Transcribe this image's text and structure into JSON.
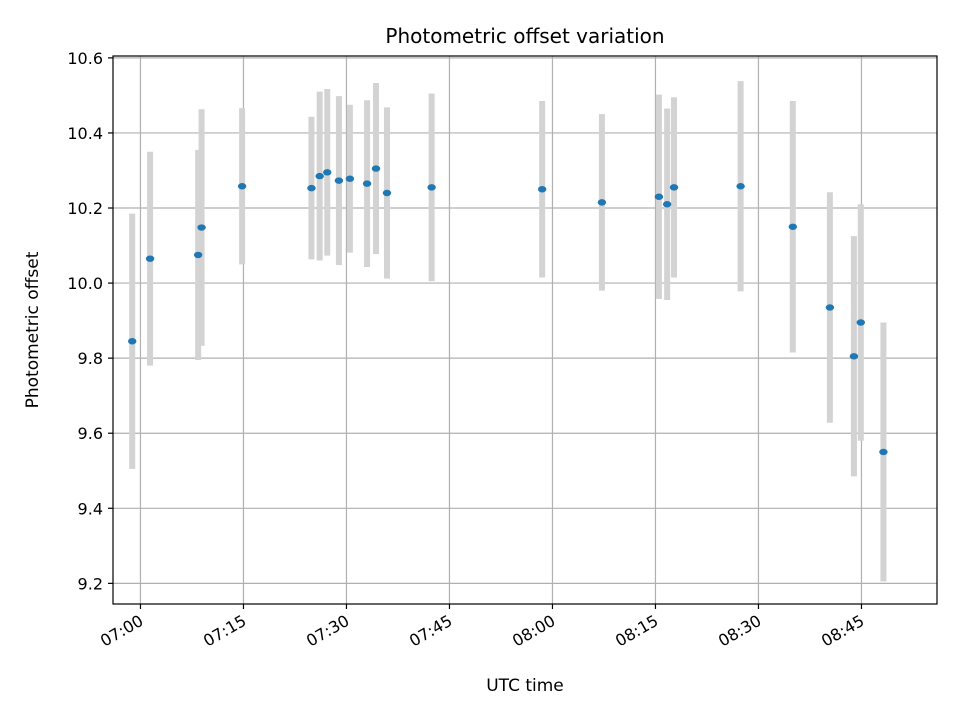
{
  "chart_data": {
    "type": "scatter",
    "title": "Photometric offset variation",
    "xlabel": "UTC time",
    "ylabel": "Photometric offset",
    "xlim": [
      "06:56",
      "08:56"
    ],
    "ylim": [
      9.145,
      10.605
    ],
    "x_ticks": [
      "07:00",
      "07:15",
      "07:30",
      "07:45",
      "08:00",
      "08:15",
      "08:30",
      "08:45"
    ],
    "y_ticks": [
      9.2,
      9.4,
      9.6,
      9.8,
      10.0,
      10.2,
      10.4,
      10.6
    ],
    "y_tick_labels": [
      "9.2",
      "9.4",
      "9.6",
      "9.8",
      "10.0",
      "10.2",
      "10.4",
      "10.6"
    ],
    "grid": true,
    "point_color": "#1f77b4",
    "errorbar_color": "#d3d3d3",
    "points": [
      {
        "x": "06:58:48",
        "y": 9.845,
        "err": 0.34
      },
      {
        "x": "07:01:24",
        "y": 10.065,
        "err": 0.285
      },
      {
        "x": "07:08:24",
        "y": 10.075,
        "err": 0.28
      },
      {
        "x": "07:08:54",
        "y": 10.148,
        "err": 0.315
      },
      {
        "x": "07:14:48",
        "y": 10.258,
        "err": 0.208
      },
      {
        "x": "07:24:54",
        "y": 10.253,
        "err": 0.19
      },
      {
        "x": "07:26:06",
        "y": 10.285,
        "err": 0.225
      },
      {
        "x": "07:27:12",
        "y": 10.295,
        "err": 0.222
      },
      {
        "x": "07:28:54",
        "y": 10.273,
        "err": 0.225
      },
      {
        "x": "07:30:30",
        "y": 10.278,
        "err": 0.197
      },
      {
        "x": "07:33:00",
        "y": 10.265,
        "err": 0.222
      },
      {
        "x": "07:34:18",
        "y": 10.305,
        "err": 0.228
      },
      {
        "x": "07:35:54",
        "y": 10.24,
        "err": 0.228
      },
      {
        "x": "07:42:24",
        "y": 10.255,
        "err": 0.25
      },
      {
        "x": "07:58:30",
        "y": 10.25,
        "err": 0.235
      },
      {
        "x": "08:07:12",
        "y": 10.215,
        "err": 0.235
      },
      {
        "x": "08:15:30",
        "y": 10.23,
        "err": 0.272
      },
      {
        "x": "08:16:42",
        "y": 10.21,
        "err": 0.255
      },
      {
        "x": "08:17:42",
        "y": 10.255,
        "err": 0.24
      },
      {
        "x": "08:27:24",
        "y": 10.258,
        "err": 0.28
      },
      {
        "x": "08:35:00",
        "y": 10.15,
        "err": 0.335
      },
      {
        "x": "08:40:24",
        "y": 9.935,
        "err": 0.307
      },
      {
        "x": "08:43:54",
        "y": 9.805,
        "err": 0.32
      },
      {
        "x": "08:44:54",
        "y": 9.895,
        "err": 0.315
      },
      {
        "x": "08:48:12",
        "y": 9.55,
        "err": 0.345
      }
    ]
  }
}
